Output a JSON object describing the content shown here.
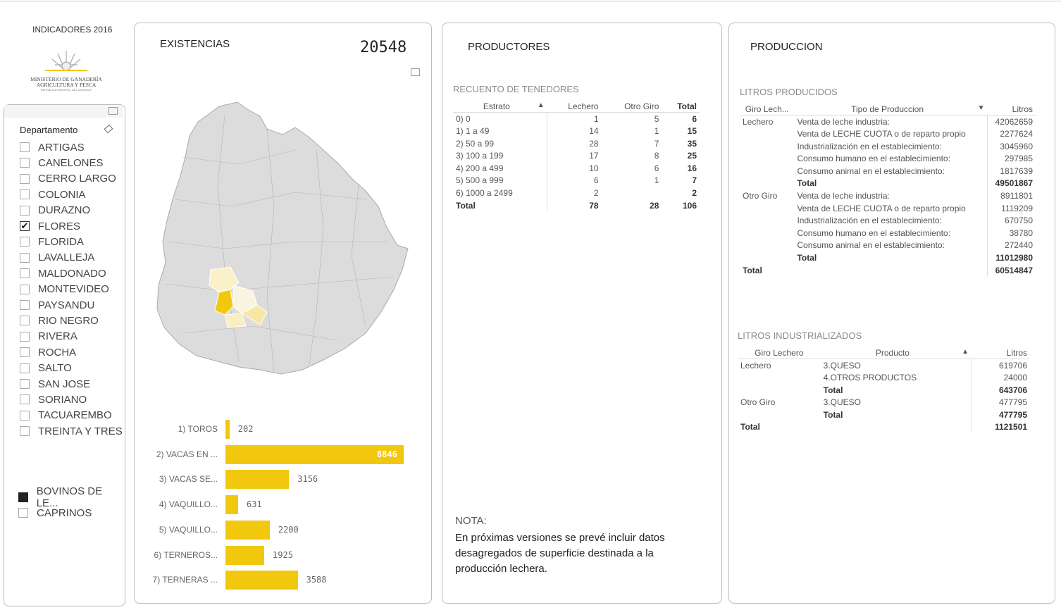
{
  "header": {
    "title": "INDICADORES 2016",
    "logo_text": "MINISTERIO DE GANADERÍA AGRICULTURA Y PESCA",
    "logo_subtext": "REPÚBLICA ORIENTAL DEL URUGUAY"
  },
  "slicer": {
    "title": "Departamento",
    "items": [
      {
        "label": "ARTIGAS",
        "checked": false
      },
      {
        "label": "CANELONES",
        "checked": false
      },
      {
        "label": "CERRO LARGO",
        "checked": false
      },
      {
        "label": "COLONIA",
        "checked": false
      },
      {
        "label": "DURAZNO",
        "checked": false
      },
      {
        "label": "FLORES",
        "checked": true
      },
      {
        "label": "FLORIDA",
        "checked": false
      },
      {
        "label": "LAVALLEJA",
        "checked": false
      },
      {
        "label": "MALDONADO",
        "checked": false
      },
      {
        "label": "MONTEVIDEO",
        "checked": false
      },
      {
        "label": "PAYSANDU",
        "checked": false
      },
      {
        "label": "RIO NEGRO",
        "checked": false
      },
      {
        "label": "RIVERA",
        "checked": false
      },
      {
        "label": "ROCHA",
        "checked": false
      },
      {
        "label": "SALTO",
        "checked": false
      },
      {
        "label": "SAN JOSE",
        "checked": false
      },
      {
        "label": "SORIANO",
        "checked": false
      },
      {
        "label": "TACUAREMBO",
        "checked": false
      },
      {
        "label": "TREINTA Y TRES",
        "checked": false
      }
    ]
  },
  "species": {
    "items": [
      {
        "label": "BOVINOS DE LE...",
        "selected": true
      },
      {
        "label": "CAPRINOS",
        "selected": false
      }
    ]
  },
  "existencias": {
    "title": "EXISTENCIAS",
    "total": "20548"
  },
  "chart_data": {
    "type": "bar",
    "orientation": "horizontal",
    "title": "EXISTENCIAS",
    "categories": [
      "1) TOROS",
      "2) VACAS EN ...",
      "3) VACAS SE...",
      "4) VAQUILLO...",
      "5) VAQUILLO...",
      "6) TERNEROS...",
      "7) TERNERAS ..."
    ],
    "values": [
      202,
      8846,
      3156,
      631,
      2200,
      1925,
      3588
    ],
    "color": "#f2c80f",
    "xlim": [
      0,
      8846
    ]
  },
  "productores": {
    "title": "PRODUCTORES",
    "subtitle": "RECUENTO DE TENEDORES",
    "headers": [
      "Estrato",
      "Lechero",
      "Otro Giro",
      "Total"
    ],
    "rows": [
      [
        "0) 0",
        "1",
        "5",
        "6"
      ],
      [
        "1) 1 a 49",
        "14",
        "1",
        "15"
      ],
      [
        "2) 50 a 99",
        "28",
        "7",
        "35"
      ],
      [
        "3) 100 a 199",
        "17",
        "8",
        "25"
      ],
      [
        "4) 200 a 499",
        "10",
        "6",
        "16"
      ],
      [
        "5) 500 a 999",
        "6",
        "1",
        "7"
      ],
      [
        "6) 1000 a 2499",
        "2",
        "",
        "2"
      ]
    ],
    "total": [
      "Total",
      "78",
      "28",
      "106"
    ],
    "nota_title": "NOTA:",
    "nota_text": "En próximas versiones se prevé incluir datos desagregados de superficie destinada a la producción lechera."
  },
  "produccion": {
    "title": "PRODUCCION",
    "litros_producidos": {
      "subtitle": "LITROS PRODUCIDOS",
      "headers": [
        "Giro Lech...",
        "Tipo de Produccion",
        "Litros"
      ],
      "groups": [
        {
          "name": "Lechero",
          "rows": [
            [
              "Venta de leche industria:",
              "42062659"
            ],
            [
              "Venta de LECHE CUOTA o de reparto propio",
              "2277624"
            ],
            [
              "Industrialización en el establecimiento:",
              "3045960"
            ],
            [
              "Consumo humano en el establecimiento:",
              "297985"
            ],
            [
              "Consumo animal en el establecimiento:",
              "1817639"
            ]
          ],
          "total": "49501867"
        },
        {
          "name": "Otro Giro",
          "rows": [
            [
              "Venta de leche industria:",
              "8911801"
            ],
            [
              "Venta de LECHE CUOTA o de reparto propio",
              "1119209"
            ],
            [
              "Industrialización en el establecimiento:",
              "670750"
            ],
            [
              "Consumo humano en el establecimiento:",
              "38780"
            ],
            [
              "Consumo animal en el establecimiento:",
              "272440"
            ]
          ],
          "total": "11012980"
        }
      ],
      "total": "60514847",
      "total_label": "Total"
    },
    "litros_industrializados": {
      "subtitle": "LITROS INDUSTRIALIZADOS",
      "headers": [
        "Giro Lechero",
        "Producto",
        "Litros"
      ],
      "groups": [
        {
          "name": "Lechero",
          "rows": [
            [
              "3.QUESO",
              "619706"
            ],
            [
              "4.OTROS PRODUCTOS",
              "24000"
            ]
          ],
          "total": "643706"
        },
        {
          "name": "Otro Giro",
          "rows": [
            [
              "3.QUESO",
              "477795"
            ]
          ],
          "total": "477795"
        }
      ],
      "total": "1121501",
      "total_label": "Total"
    }
  }
}
